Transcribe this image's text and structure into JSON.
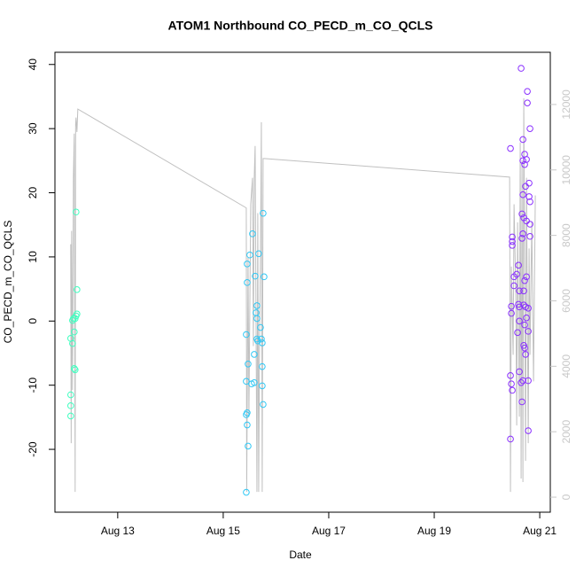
{
  "chart_data": {
    "type": "scatter",
    "title": "ATOM1 Northbound CO_PECD_m_CO_QCLS",
    "x_label": "Date",
    "y_label": "CO_PECD_m_CO_QCLS",
    "xlim": [
      11.81,
      21.2
    ],
    "ylim": [
      -29.8,
      41.9
    ],
    "y2lim": [
      -459,
      13595
    ],
    "xticks": [
      {
        "value": 13,
        "label": "Aug 13"
      },
      {
        "value": 15,
        "label": "Aug 15"
      },
      {
        "value": 17,
        "label": "Aug 17"
      },
      {
        "value": 19,
        "label": "Aug 19"
      },
      {
        "value": 21,
        "label": "Aug 21"
      }
    ],
    "yticks": [
      -20,
      -10,
      0,
      10,
      20,
      30,
      40
    ],
    "y2ticks": [
      0,
      2000,
      4000,
      6000,
      8000,
      10000,
      12000
    ],
    "y2_tick_color": "#c8c8c8",
    "grid": false,
    "series": [
      {
        "color": "#40FFC0",
        "x": [
          12.109,
          12.109,
          12.109,
          12.109,
          12.143,
          12.143,
          12.16,
          12.176,
          12.176,
          12.193,
          12.193,
          12.21,
          12.227,
          12.227,
          12.21
        ],
        "values": [
          -13.2,
          -11.5,
          -14.8,
          -2.7,
          -3.5,
          0.1,
          0.4,
          -1.7,
          -7.4,
          -7.6,
          0.4,
          0.8,
          1.1,
          4.9,
          17.0
        ]
      },
      {
        "color": "#30C8F5",
        "x": [
          15.437,
          15.437,
          15.454,
          15.454,
          15.471,
          15.437,
          15.437,
          15.471,
          15.454,
          15.454,
          15.504,
          15.555,
          15.538,
          15.588,
          15.588,
          15.605,
          15.639,
          15.622,
          15.639,
          15.639,
          15.655,
          15.672,
          15.706,
          15.723,
          15.739,
          15.739,
          15.756,
          15.739,
          15.756,
          15.773
        ],
        "values": [
          -26.7,
          -14.6,
          -14.3,
          -16.2,
          -19.5,
          -9.4,
          -2.1,
          -6.7,
          6.0,
          8.9,
          10.3,
          13.6,
          -9.8,
          -9.6,
          -5.2,
          7.0,
          2.4,
          1.3,
          0.4,
          -2.8,
          -3.1,
          10.5,
          -1.0,
          -2.8,
          -3.4,
          -7.1,
          16.8,
          -10.1,
          -13.0,
          6.9
        ]
      },
      {
        "color": "#8A30FF",
        "x": [
          20.445,
          20.445,
          20.462,
          20.479,
          20.445,
          20.479,
          20.479,
          20.479,
          20.462,
          20.462,
          20.513,
          20.563,
          20.513,
          20.597,
          20.613,
          20.597,
          20.613,
          20.613,
          20.58,
          20.613,
          20.647,
          20.664,
          20.647,
          20.681,
          20.714,
          20.681,
          20.714,
          20.748,
          20.731,
          20.681,
          20.664,
          20.697,
          20.748,
          20.815,
          20.681,
          20.664,
          20.815,
          20.714,
          20.748,
          20.697,
          20.697,
          20.731,
          20.782,
          20.748,
          20.782,
          20.714,
          20.697,
          20.714,
          20.731,
          20.681,
          20.782,
          20.782,
          20.765,
          20.765,
          20.815,
          20.798,
          20.815,
          20.798
        ],
        "values": [
          -18.4,
          -8.5,
          -9.8,
          -10.8,
          26.9,
          13.1,
          12.4,
          11.8,
          2.3,
          1.2,
          6.9,
          7.3,
          5.5,
          8.7,
          4.7,
          2.6,
          2.2,
          0,
          -1.8,
          -7.9,
          -9.6,
          -12.6,
          39.4,
          28.3,
          26.0,
          25.0,
          24.4,
          25.2,
          21.0,
          19.7,
          16.7,
          16.1,
          15.6,
          15.1,
          13.6,
          12.9,
          13.2,
          6.3,
          6.9,
          4.7,
          2.5,
          2.2,
          2.0,
          0.5,
          -1.6,
          -0.6,
          -3.8,
          -4.2,
          -5.2,
          -9.3,
          -9.3,
          -17.1,
          35.8,
          34.0,
          30.0,
          21.5,
          18.6,
          19.4
        ]
      },
      {
        "type": "line",
        "axis": "y2",
        "color": "#c0c0c0",
        "x": [
          12.109,
          12.118,
          12.126,
          12.143,
          12.16,
          12.176,
          12.193,
          12.202,
          12.21,
          12.227,
          12.244,
          15.437,
          15.445,
          15.471,
          15.487,
          15.521,
          15.555,
          15.571,
          15.588,
          15.605,
          15.639,
          15.655,
          15.672,
          15.689,
          15.706,
          15.723,
          15.739,
          15.756,
          15.773,
          20.429,
          20.445,
          20.462,
          20.496,
          20.513,
          20.546,
          20.563,
          20.58,
          20.613,
          20.63,
          20.647,
          20.664,
          20.681,
          20.697,
          20.731,
          20.748,
          20.782,
          20.798,
          20.815,
          20.849,
          20.882,
          20.916
        ],
        "values": [
          7730,
          1650,
          8140,
          3270,
          9760,
          11110,
          160,
          11380,
          11600,
          11160,
          11860,
          8840,
          160,
          7320,
          2460,
          8950,
          9760,
          4620,
          9760,
          10730,
          160,
          8680,
          160,
          4890,
          7320,
          11460,
          160,
          10350,
          10350,
          9780,
          160,
          7050,
          4350,
          8950,
          6240,
          2190,
          8400,
          2460,
          10840,
          570,
          10300,
          460,
          12190,
          1110,
          9760,
          1650,
          7600,
          4350,
          8400,
          3540,
          9220
        ]
      }
    ]
  }
}
